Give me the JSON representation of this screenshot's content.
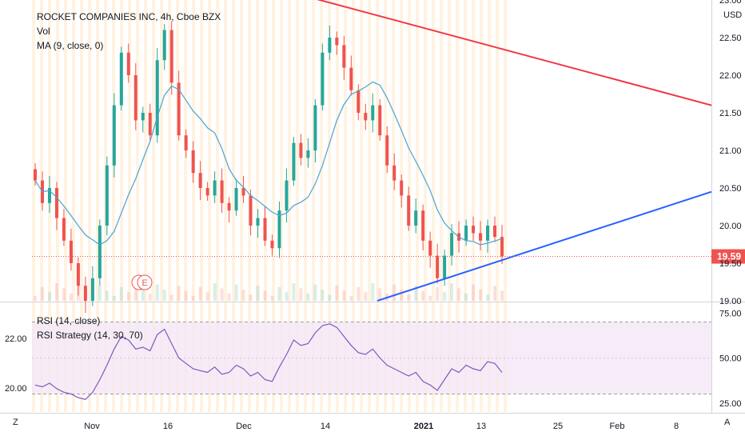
{
  "legend": {
    "title": "ROCKET COMPANIES INC, 4h, Cboe BZX",
    "vol": "Vol",
    "ma": "MA (9, close, 0)"
  },
  "rsi_legend": {
    "rsi": "RSI (14, close)",
    "strategy": "RSI Strategy (14, 30, 70)"
  },
  "currency": "USD",
  "price_tag": "19.59",
  "earnings_marker": "E",
  "corner_left": "Z",
  "corner_right": "A",
  "colors": {
    "up": "#26a69a",
    "down": "#ef5350",
    "ma": "#4aa3d8",
    "rsi": "#7e57c2",
    "resistance": "#f23645",
    "support": "#2962ff"
  },
  "chart_data": [
    {
      "type": "candlestick",
      "title": "ROCKET COMPANIES INC, 4h, Cboe BZX",
      "ylabel": "USD",
      "ylim": [
        19.0,
        23.0
      ],
      "y_ticks": [
        "19.00",
        "19.50",
        "20.00",
        "20.50",
        "21.00",
        "21.50",
        "22.00",
        "22.50",
        "23.00"
      ],
      "x_tick_labels": [
        "Nov",
        "16",
        "Dec",
        "14",
        "2021",
        "13",
        "25",
        "Feb",
        "8"
      ],
      "last_price": 19.59,
      "close_series": [
        20.6,
        20.3,
        20.5,
        20.1,
        19.8,
        19.5,
        19.2,
        19.0,
        19.3,
        20.0,
        20.8,
        21.6,
        22.3,
        22.0,
        21.4,
        21.5,
        21.2,
        22.2,
        22.6,
        21.9,
        21.2,
        21.0,
        20.7,
        20.5,
        20.4,
        20.6,
        20.3,
        20.2,
        20.5,
        20.4,
        20.0,
        20.1,
        19.8,
        19.7,
        20.2,
        20.6,
        21.1,
        20.9,
        21.0,
        21.6,
        22.3,
        22.5,
        22.4,
        22.1,
        21.8,
        21.5,
        21.4,
        21.6,
        21.2,
        20.8,
        20.6,
        20.4,
        20.0,
        20.2,
        19.8,
        19.6,
        19.3,
        19.6,
        19.9,
        19.8,
        20.0,
        19.9,
        19.8,
        20.0,
        19.85,
        19.59
      ],
      "ma_period": 9,
      "trendlines": [
        {
          "name": "resistance",
          "from_price": 23.1,
          "to_price": 21.6
        },
        {
          "name": "support",
          "from_price": 19.0,
          "to_price": 20.45
        }
      ]
    },
    {
      "type": "line",
      "title": "RSI (14, close)",
      "ylim": [
        20.0,
        80.0
      ],
      "y_ticks": [
        "25.00",
        "50.00",
        "75.00"
      ],
      "left_ticks": [
        "22.00",
        "20.00"
      ],
      "bands": [
        30,
        70
      ],
      "values": [
        35,
        34,
        36,
        33,
        31,
        30,
        28,
        27,
        31,
        38,
        46,
        55,
        62,
        60,
        55,
        56,
        54,
        63,
        66,
        58,
        50,
        47,
        44,
        43,
        42,
        45,
        41,
        42,
        46,
        44,
        40,
        42,
        38,
        37,
        45,
        52,
        60,
        57,
        58,
        64,
        68,
        69,
        67,
        62,
        57,
        53,
        52,
        55,
        50,
        46,
        44,
        42,
        40,
        42,
        37,
        35,
        32,
        38,
        44,
        42,
        46,
        44,
        43,
        48,
        47,
        42
      ]
    }
  ]
}
